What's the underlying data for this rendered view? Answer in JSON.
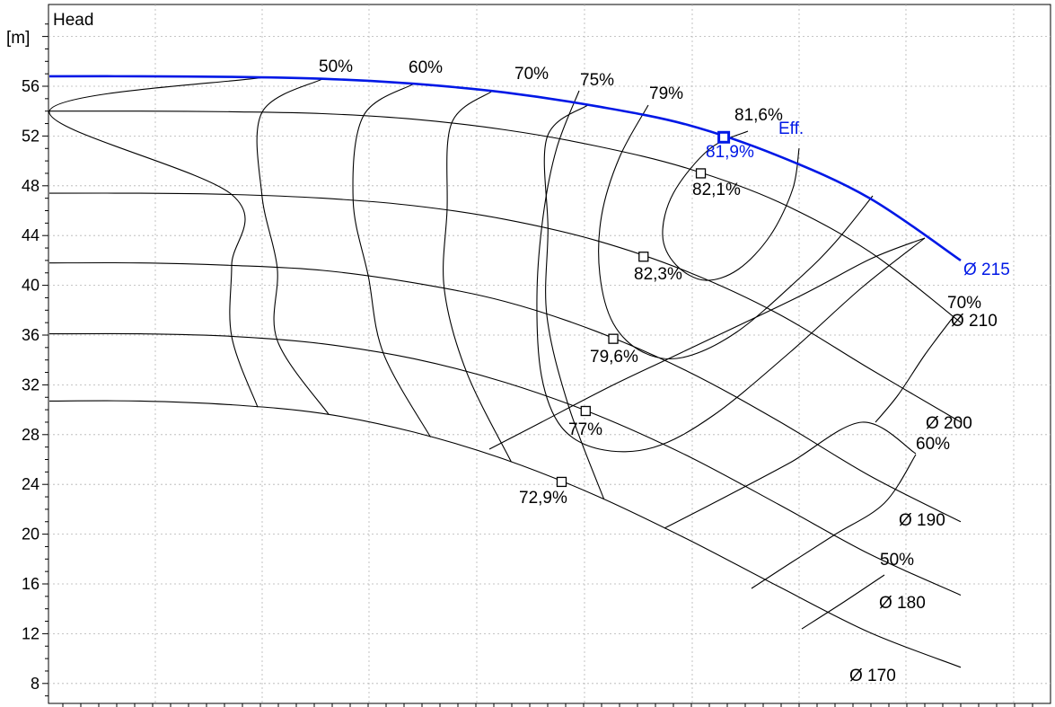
{
  "chart_data": {
    "type": "line",
    "title": "Head",
    "ylabel": "[m]",
    "xlabel": "",
    "ylim": [
      7,
      62
    ],
    "y_ticks": [
      "8",
      "12",
      "16",
      "20",
      "24",
      "28",
      "32",
      "36",
      "40",
      "44",
      "48",
      "52",
      "56"
    ],
    "grid": true,
    "impeller_curves": [
      {
        "name": "Ø 215",
        "highlight": true,
        "points": [
          [
            0,
            56.8
          ],
          [
            0.1,
            56.8
          ],
          [
            0.2,
            56.75
          ],
          [
            0.3,
            56.6
          ],
          [
            0.4,
            56.2
          ],
          [
            0.5,
            55.5
          ],
          [
            0.6,
            54.4
          ],
          [
            0.7,
            52.9
          ],
          [
            0.8,
            50.4
          ],
          [
            0.9,
            47.0
          ],
          [
            1.0,
            42.0
          ]
        ]
      },
      {
        "name": "Ø 210",
        "points": [
          [
            0,
            54.0
          ],
          [
            0.1,
            54.0
          ],
          [
            0.2,
            53.95
          ],
          [
            0.3,
            53.8
          ],
          [
            0.4,
            53.35
          ],
          [
            0.5,
            52.5
          ],
          [
            0.6,
            51.2
          ],
          [
            0.7,
            49.4
          ],
          [
            0.8,
            46.7
          ],
          [
            0.9,
            42.7
          ],
          [
            1.0,
            37.0
          ]
        ]
      },
      {
        "name": "Ø 200",
        "points": [
          [
            0,
            47.4
          ],
          [
            0.1,
            47.4
          ],
          [
            0.2,
            47.3
          ],
          [
            0.3,
            47.0
          ],
          [
            0.4,
            46.4
          ],
          [
            0.5,
            45.3
          ],
          [
            0.6,
            43.6
          ],
          [
            0.7,
            41.1
          ],
          [
            0.8,
            37.7
          ],
          [
            0.9,
            33.3
          ],
          [
            1.0,
            29.0
          ]
        ]
      },
      {
        "name": "Ø 190",
        "points": [
          [
            0,
            41.8
          ],
          [
            0.1,
            41.8
          ],
          [
            0.2,
            41.6
          ],
          [
            0.3,
            41.2
          ],
          [
            0.4,
            40.2
          ],
          [
            0.5,
            38.7
          ],
          [
            0.6,
            36.3
          ],
          [
            0.7,
            33.1
          ],
          [
            0.8,
            29.1
          ],
          [
            0.9,
            24.7
          ],
          [
            1.0,
            21.0
          ]
        ]
      },
      {
        "name": "Ø 180",
        "points": [
          [
            0,
            36.1
          ],
          [
            0.1,
            36.1
          ],
          [
            0.2,
            35.9
          ],
          [
            0.3,
            35.3
          ],
          [
            0.4,
            34.1
          ],
          [
            0.5,
            32.2
          ],
          [
            0.6,
            29.6
          ],
          [
            0.7,
            26.3
          ],
          [
            0.8,
            22.4
          ],
          [
            0.9,
            18.4
          ],
          [
            1.0,
            15.1
          ]
        ]
      },
      {
        "name": "Ø 170",
        "points": [
          [
            0,
            30.7
          ],
          [
            0.1,
            30.7
          ],
          [
            0.2,
            30.4
          ],
          [
            0.3,
            29.7
          ],
          [
            0.4,
            28.2
          ],
          [
            0.5,
            26.0
          ],
          [
            0.6,
            23.1
          ],
          [
            0.7,
            19.6
          ],
          [
            0.8,
            15.8
          ],
          [
            0.9,
            12.1
          ],
          [
            1.0,
            9.3
          ]
        ]
      }
    ],
    "efficiency_lines": [
      {
        "name": "50%",
        "heads": [
          56.7,
          54.0,
          47.3,
          41.6,
          35.9,
          30.2
        ]
      },
      {
        "name": "60%",
        "heads": [
          56.6,
          53.9,
          47.2,
          41.4,
          35.6,
          29.6
        ]
      },
      {
        "name": "70%",
        "heads": [
          56.2,
          53.6,
          46.8,
          40.7,
          34.5,
          27.8
        ]
      },
      {
        "name": "75%",
        "heads": [
          55.6,
          53.0,
          46.0,
          39.7,
          33.0,
          25.8
        ]
      },
      {
        "name": "79%",
        "heads": [
          54.5,
          51.9,
          44.5,
          37.6,
          30.4,
          22.8
        ]
      }
    ],
    "bep_markers": [
      {
        "label": "81,9%",
        "head": 51.9,
        "curve": "Ø 215",
        "highlight": true
      },
      {
        "label": "82,1%",
        "head": 49.0,
        "curve": "Ø 210"
      },
      {
        "label": "82,3%",
        "head": 42.3,
        "curve": "Ø 200"
      },
      {
        "label": "79,6%",
        "head": 35.7,
        "curve": "Ø 190"
      },
      {
        "label": "77%",
        "head": 29.9,
        "curve": "Ø 180"
      },
      {
        "label": "72,9%",
        "head": 24.2,
        "curve": "Ø 170"
      }
    ],
    "efficiency_labels": [
      "50%",
      "60%",
      "70%",
      "75%",
      "79%",
      "81,6%",
      "70%",
      "60%",
      "50%"
    ],
    "eff_marker_label": "Eff.",
    "colors": {
      "highlight": "#0018e6",
      "curves": "#000000",
      "grid": "#b4b4b4"
    }
  }
}
